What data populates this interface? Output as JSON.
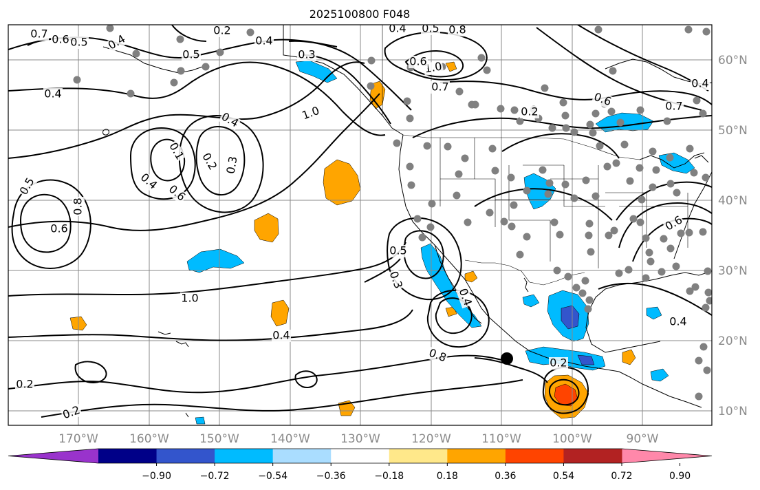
{
  "title": "2025100800 F048",
  "map": {
    "lon_labels": [
      "170°W",
      "160°W",
      "150°W",
      "140°W",
      "130°W",
      "120°W",
      "110°W",
      "100°W",
      "90°W"
    ],
    "lat_labels": [
      "60°N",
      "50°N",
      "40°N",
      "30°N",
      "20°N",
      "10°N"
    ],
    "contour_labels": [
      "0.7",
      "0.6",
      "0.5",
      "0.4",
      "0.2",
      "0.4",
      "0.4",
      "0.5",
      "0.8",
      "0.3",
      "0.5",
      "0.4",
      "1.0",
      "0.7",
      "1.0",
      "0.6",
      "0.4",
      "0.3",
      "0.2",
      "0.1",
      "0.4",
      "0.6",
      "0.2",
      "0.6",
      "0.7",
      "0.4",
      "0.5",
      "0.6",
      "0.8",
      "1.0",
      "0.3",
      "0.5",
      "0.2",
      "0.2",
      "0.4",
      "0.8",
      "0.4",
      "0.2",
      "0.4",
      "0.6"
    ],
    "colors": {
      "grid": "#888888",
      "station": "#808080",
      "storm": "#000000",
      "contour": "#000000",
      "coast": "#000000"
    }
  },
  "colorbar": {
    "ticks": [
      "−0.90",
      "−0.72",
      "−0.54",
      "−0.36",
      "−0.18",
      "0.18",
      "0.36",
      "0.54",
      "0.72",
      "0.90"
    ],
    "colors": [
      "#9933cc",
      "#000088",
      "#3355cc",
      "#00bbff",
      "#aaddff",
      "#ffffff",
      "#ffe88a",
      "#ffa500",
      "#ff4400",
      "#b22222",
      "#ff88aa"
    ]
  }
}
